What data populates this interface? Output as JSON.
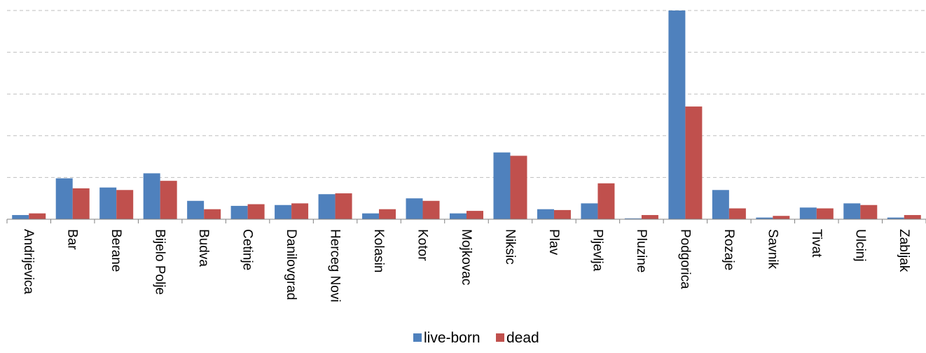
{
  "chart_data": {
    "type": "bar",
    "categories": [
      "Andrijevica",
      "Bar",
      "Berane",
      "Bijelo Polje",
      "Budva",
      "Cetinje",
      "Danilovgrad",
      "Herceg Novi",
      "Kolasin",
      "Kotor",
      "Mojkovac",
      "Niksic",
      "Plav",
      "Pljevlja",
      "Pluzine",
      "Podgorica",
      "Rozaje",
      "Savnik",
      "Tivat",
      "Ulcinj",
      "Zabljak"
    ],
    "series": [
      {
        "name": "live-born",
        "color": "#4F81BD",
        "values": [
          5,
          49,
          38,
          55,
          22,
          16,
          17,
          30,
          7,
          25,
          7,
          80,
          12,
          19,
          1,
          250,
          35,
          2,
          14,
          19,
          2
        ]
      },
      {
        "name": "dead",
        "color": "#C0504D",
        "values": [
          7,
          37,
          35,
          46,
          12,
          18,
          19,
          31,
          12,
          22,
          10,
          76,
          11,
          43,
          5,
          135,
          13,
          4,
          13,
          17,
          5
        ]
      }
    ],
    "ylim": [
      0,
      250
    ],
    "gridlines": [
      50,
      100,
      150,
      200,
      250
    ],
    "grid": true,
    "legend_position": "bottom-center",
    "gridline_color": "#bfbfbf",
    "axis_color": "#808080"
  }
}
